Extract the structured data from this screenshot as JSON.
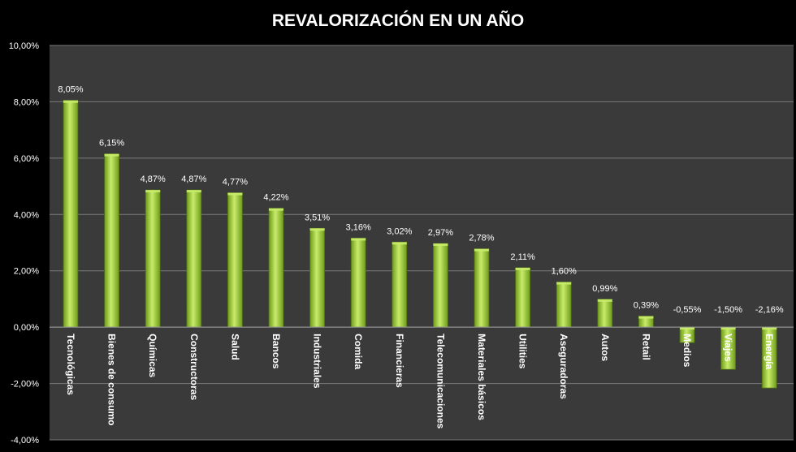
{
  "chart_data": {
    "type": "bar",
    "title": "REVALORIZACIÓN EN UN AÑO",
    "xlabel": "",
    "ylabel": "",
    "ylim": [
      -4,
      10
    ],
    "yticks": [
      "-4,00%",
      "-2,00%",
      "0,00%",
      "2,00%",
      "4,00%",
      "6,00%",
      "8,00%",
      "10,00%"
    ],
    "grid": true,
    "categories": [
      "Tecnológicas",
      "Bienes de consumo",
      "Químicas",
      "Constructoras",
      "Salud",
      "Bancos",
      "Industriales",
      "Comida",
      "Financieras",
      "Telecomunicaciones",
      "Materiales básicos",
      "Utilities",
      "Aseguradoras",
      "Autos",
      "Retail",
      "Medios",
      "Viajes",
      "Energía"
    ],
    "values": [
      8.05,
      6.15,
      4.87,
      4.87,
      4.77,
      4.22,
      3.51,
      3.16,
      3.02,
      2.97,
      2.78,
      2.11,
      1.6,
      0.99,
      0.39,
      -0.55,
      -1.5,
      -2.16
    ],
    "data_labels": [
      "8,05%",
      "6,15%",
      "4,87%",
      "4,87%",
      "4,77%",
      "4,22%",
      "3,51%",
      "3,16%",
      "3,02%",
      "2,97%",
      "2,78%",
      "2,11%",
      "1,60%",
      "0,99%",
      "0,39%",
      "-0,55%",
      "-1,50%",
      "-2,16%"
    ],
    "colors": {
      "background": "#000000",
      "plot_area": "#3a3a3a",
      "bar_light": "#c8ec6a",
      "bar_dark": "#6e9a1a",
      "grid": "#7a7a7a"
    }
  }
}
